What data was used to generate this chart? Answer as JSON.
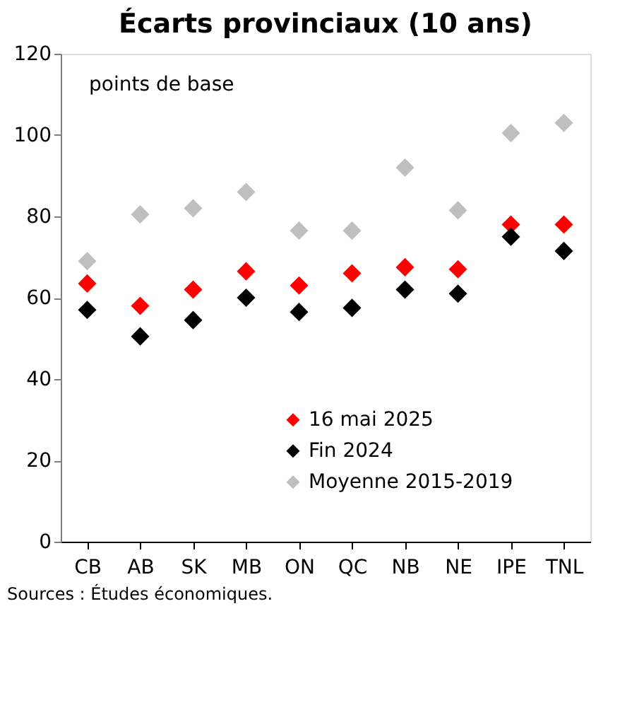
{
  "chart_data": {
    "type": "scatter",
    "title": "Écarts provinciaux (10 ans)",
    "ylabel": "points de base",
    "categories": [
      "CB",
      "AB",
      "SK",
      "MB",
      "ON",
      "QC",
      "NB",
      "NE",
      "IPE",
      "TNL"
    ],
    "series": [
      {
        "name": "16 mai 2025",
        "color": "#ff0000",
        "values": [
          63.5,
          58,
          62,
          66.5,
          63,
          66,
          67.5,
          67,
          78,
          78
        ]
      },
      {
        "name": "Fin 2024",
        "color": "#000000",
        "values": [
          57,
          50.5,
          54.5,
          60,
          56.5,
          57.5,
          62,
          61,
          75,
          71.5
        ]
      },
      {
        "name": "Moyenne 2015-2019",
        "color": "#bfbfbf",
        "values": [
          69,
          80.5,
          82,
          86,
          76.5,
          76.5,
          92,
          81.5,
          100.5,
          103
        ]
      }
    ],
    "ylim": [
      0,
      120
    ],
    "yticks": [
      0,
      20,
      40,
      60,
      80,
      100,
      120
    ],
    "marker": "diamond",
    "legend": "bottom",
    "grid": false,
    "annotations": [
      "Sources : Études économiques."
    ]
  }
}
